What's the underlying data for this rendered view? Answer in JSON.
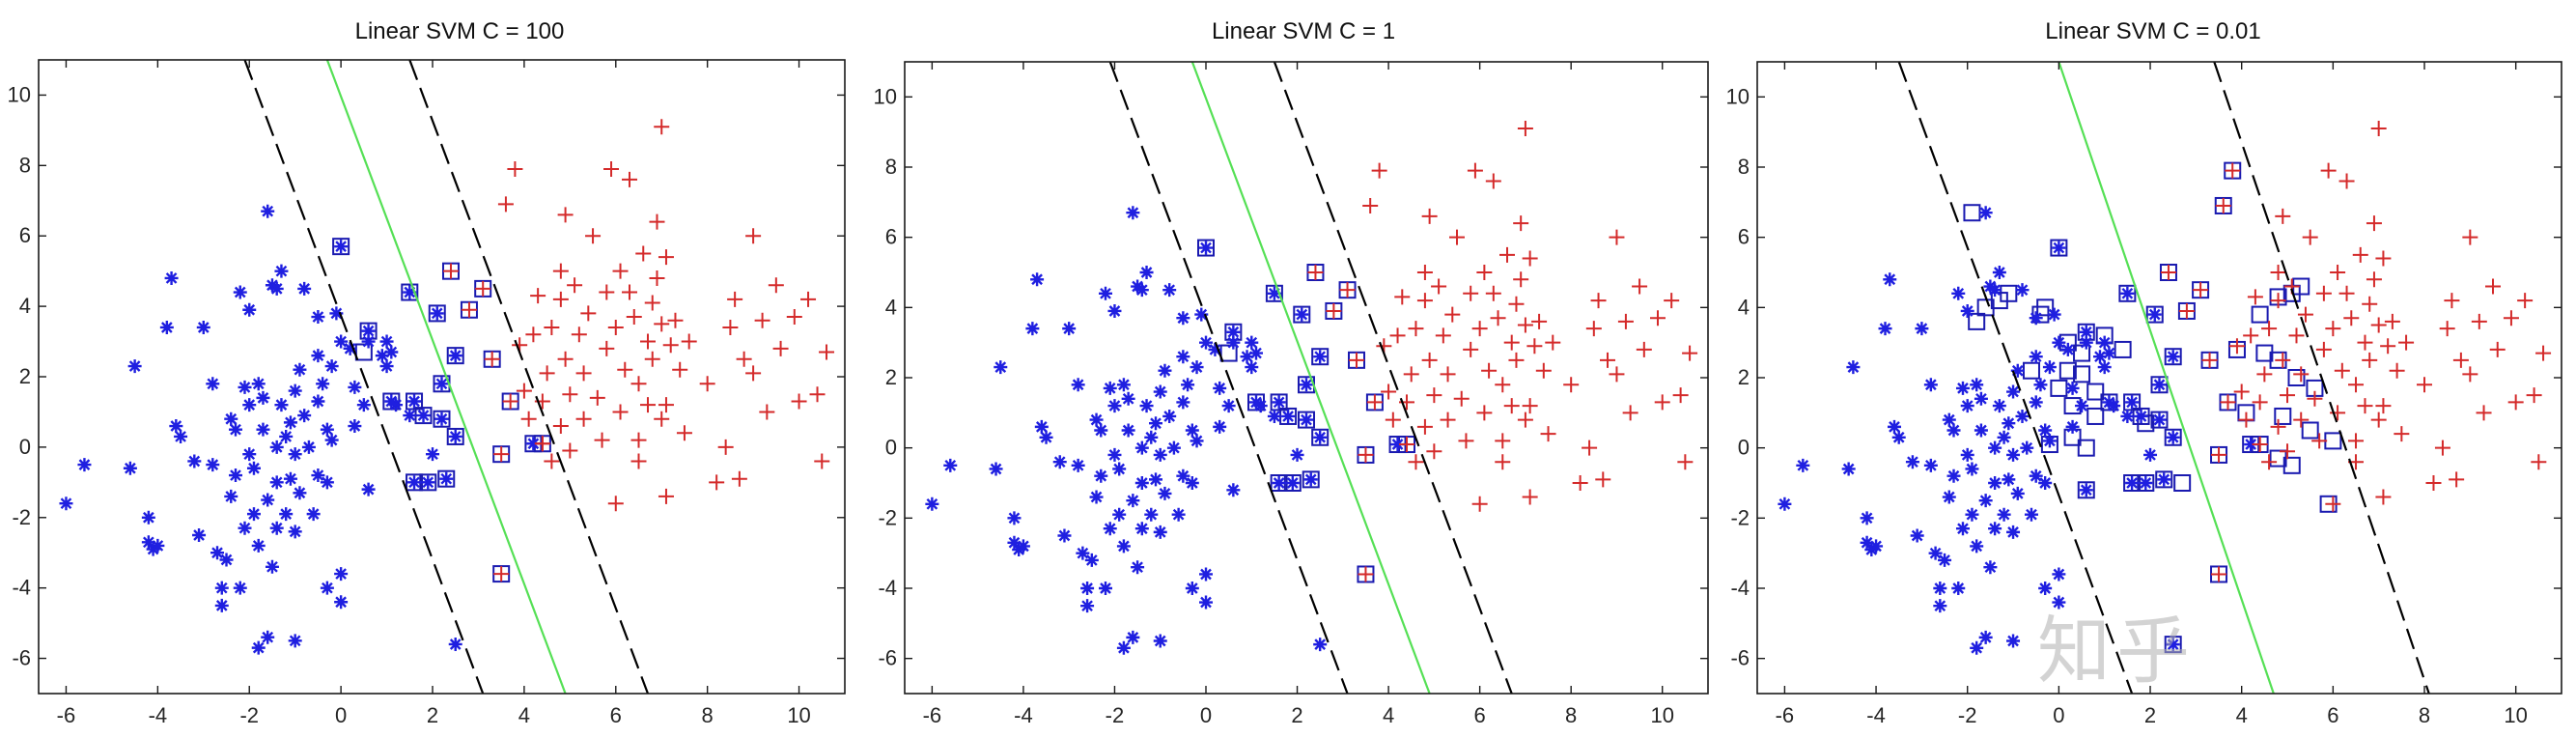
{
  "chart_data": [
    {
      "type": "scatter",
      "title": "Linear SVM  C = 100",
      "xlim": [
        -6.6,
        11.0
      ],
      "ylim": [
        -7.0,
        11.0
      ],
      "xticks": [
        -6,
        -4,
        -2,
        0,
        2,
        4,
        6,
        8,
        10
      ],
      "yticks": [
        -6,
        -4,
        -2,
        0,
        2,
        4,
        6,
        8,
        10
      ],
      "grid": false,
      "lines": [
        {
          "role": "decision boundary",
          "color": "#55e055",
          "style": "solid",
          "points": [
            [
              -0.3,
              11.0
            ],
            [
              4.9,
              -7.0
            ]
          ]
        },
        {
          "role": "margin",
          "color": "#000000",
          "style": "dashed",
          "points": [
            [
              -2.1,
              11.0
            ],
            [
              3.1,
              -7.0
            ]
          ]
        },
        {
          "role": "margin",
          "color": "#000000",
          "style": "dashed",
          "points": [
            [
              1.5,
              11.0
            ],
            [
              6.7,
              -7.0
            ]
          ]
        }
      ],
      "support_vectors": [
        [
          0.0,
          5.7
        ],
        [
          0.6,
          3.3
        ],
        [
          0.5,
          2.7
        ],
        [
          1.5,
          4.4
        ],
        [
          2.1,
          3.8
        ],
        [
          2.4,
          5.0
        ],
        [
          2.8,
          3.9
        ],
        [
          3.1,
          4.5
        ],
        [
          2.5,
          2.6
        ],
        [
          3.3,
          2.5
        ],
        [
          2.2,
          1.8
        ],
        [
          1.1,
          1.3
        ],
        [
          1.6,
          1.3
        ],
        [
          1.8,
          0.9
        ],
        [
          2.2,
          0.8
        ],
        [
          2.5,
          0.3
        ],
        [
          3.5,
          -0.2
        ],
        [
          1.6,
          -1.0
        ],
        [
          1.9,
          -1.0
        ],
        [
          2.3,
          -0.9
        ],
        [
          3.7,
          1.3
        ],
        [
          4.2,
          0.1
        ],
        [
          4.4,
          0.1
        ],
        [
          3.5,
          -3.6
        ]
      ]
    },
    {
      "type": "scatter",
      "title": "Linear SVM  C = 1",
      "xlim": [
        -6.6,
        11.0
      ],
      "ylim": [
        -7.0,
        11.0
      ],
      "xticks": [
        -6,
        -4,
        -2,
        0,
        2,
        4,
        6,
        8,
        10
      ],
      "yticks": [
        -6,
        -4,
        -2,
        0,
        2,
        4,
        6,
        8,
        10
      ],
      "grid": false,
      "lines": [
        {
          "role": "decision boundary",
          "color": "#55e055",
          "style": "solid",
          "points": [
            [
              -0.3,
              11.0
            ],
            [
              4.9,
              -7.0
            ]
          ]
        },
        {
          "role": "margin",
          "color": "#000000",
          "style": "dashed",
          "points": [
            [
              -2.1,
              11.0
            ],
            [
              3.1,
              -7.0
            ]
          ]
        },
        {
          "role": "margin",
          "color": "#000000",
          "style": "dashed",
          "points": [
            [
              1.5,
              11.0
            ],
            [
              6.7,
              -7.0
            ]
          ]
        }
      ],
      "support_vectors": [
        [
          0.0,
          5.7
        ],
        [
          0.6,
          3.3
        ],
        [
          0.5,
          2.7
        ],
        [
          1.5,
          4.4
        ],
        [
          2.1,
          3.8
        ],
        [
          2.4,
          5.0
        ],
        [
          2.8,
          3.9
        ],
        [
          3.1,
          4.5
        ],
        [
          2.5,
          2.6
        ],
        [
          3.3,
          2.5
        ],
        [
          2.2,
          1.8
        ],
        [
          1.1,
          1.3
        ],
        [
          1.6,
          1.3
        ],
        [
          1.8,
          0.9
        ],
        [
          2.2,
          0.8
        ],
        [
          2.5,
          0.3
        ],
        [
          3.5,
          -0.2
        ],
        [
          1.6,
          -1.0
        ],
        [
          1.9,
          -1.0
        ],
        [
          2.3,
          -0.9
        ],
        [
          3.7,
          1.3
        ],
        [
          4.2,
          0.1
        ],
        [
          4.4,
          0.1
        ],
        [
          3.5,
          -3.6
        ]
      ]
    },
    {
      "type": "scatter",
      "title": "Linear SVM  C = 0.01",
      "xlim": [
        -6.6,
        11.0
      ],
      "ylim": [
        -7.0,
        11.0
      ],
      "xticks": [
        -6,
        -4,
        -2,
        0,
        2,
        4,
        6,
        8,
        10
      ],
      "yticks": [
        -6,
        -4,
        -2,
        0,
        2,
        4,
        6,
        8,
        10
      ],
      "grid": false,
      "lines": [
        {
          "role": "decision boundary",
          "color": "#55e055",
          "style": "solid",
          "points": [
            [
              0.0,
              11.0
            ],
            [
              4.7,
              -7.0
            ]
          ]
        },
        {
          "role": "margin",
          "color": "#000000",
          "style": "dashed",
          "points": [
            [
              -3.5,
              11.0
            ],
            [
              1.6,
              -7.0
            ]
          ]
        },
        {
          "role": "margin",
          "color": "#000000",
          "style": "dashed",
          "points": [
            [
              3.4,
              11.0
            ],
            [
              8.1,
              -7.0
            ]
          ]
        }
      ],
      "support_vectors": [
        [
          -1.9,
          6.7
        ],
        [
          0.0,
          5.7
        ],
        [
          -1.1,
          4.4
        ],
        [
          -1.3,
          4.2
        ],
        [
          -1.6,
          4.0
        ],
        [
          -1.8,
          3.6
        ],
        [
          -0.4,
          3.8
        ],
        [
          -0.3,
          4.0
        ],
        [
          0.2,
          3.0
        ],
        [
          0.6,
          3.3
        ],
        [
          0.5,
          2.7
        ],
        [
          1.0,
          3.2
        ],
        [
          1.5,
          4.4
        ],
        [
          2.1,
          3.8
        ],
        [
          2.4,
          5.0
        ],
        [
          2.8,
          3.9
        ],
        [
          3.1,
          4.5
        ],
        [
          3.6,
          6.9
        ],
        [
          3.8,
          7.9
        ],
        [
          4.4,
          3.8
        ],
        [
          4.8,
          4.3
        ],
        [
          5.1,
          4.4
        ],
        [
          5.3,
          4.6
        ],
        [
          1.4,
          2.8
        ],
        [
          0.2,
          2.2
        ],
        [
          0.5,
          2.1
        ],
        [
          0.8,
          1.6
        ],
        [
          -0.6,
          2.2
        ],
        [
          0.0,
          1.7
        ],
        [
          0.3,
          1.2
        ],
        [
          0.8,
          0.9
        ],
        [
          1.1,
          1.3
        ],
        [
          1.6,
          1.3
        ],
        [
          1.8,
          0.9
        ],
        [
          2.2,
          1.8
        ],
        [
          2.5,
          2.6
        ],
        [
          3.3,
          2.5
        ],
        [
          3.9,
          2.8
        ],
        [
          4.5,
          2.7
        ],
        [
          4.8,
          2.5
        ],
        [
          5.2,
          2.0
        ],
        [
          5.6,
          1.7
        ],
        [
          3.7,
          1.3
        ],
        [
          4.1,
          1.0
        ],
        [
          4.9,
          0.9
        ],
        [
          5.5,
          0.5
        ],
        [
          6.0,
          0.2
        ],
        [
          -0.2,
          0.1
        ],
        [
          0.3,
          0.3
        ],
        [
          0.6,
          0.0
        ],
        [
          1.9,
          0.7
        ],
        [
          2.2,
          0.8
        ],
        [
          2.5,
          0.3
        ],
        [
          3.5,
          -0.2
        ],
        [
          4.2,
          0.1
        ],
        [
          4.4,
          0.1
        ],
        [
          4.8,
          -0.3
        ],
        [
          5.1,
          -0.5
        ],
        [
          1.6,
          -1.0
        ],
        [
          1.9,
          -1.0
        ],
        [
          2.3,
          -0.9
        ],
        [
          2.7,
          -1.0
        ],
        [
          0.6,
          -1.2
        ],
        [
          5.9,
          -1.6
        ],
        [
          3.5,
          -3.6
        ],
        [
          2.5,
          -5.6
        ]
      ]
    }
  ],
  "shared_series": {
    "class_a": {
      "marker": "asterisk",
      "color": "#1f1fe0",
      "points": [
        [
          -6.0,
          -1.6
        ],
        [
          -5.6,
          -0.5
        ],
        [
          -4.6,
          -0.6
        ],
        [
          -4.5,
          2.3
        ],
        [
          -4.2,
          -2.0
        ],
        [
          -4.2,
          -2.7
        ],
        [
          -4.1,
          -2.9
        ],
        [
          -3.8,
          3.4
        ],
        [
          -3.7,
          4.8
        ],
        [
          -3.6,
          0.6
        ],
        [
          -3.5,
          0.3
        ],
        [
          -3.2,
          -0.4
        ],
        [
          -3.1,
          -2.5
        ],
        [
          -3.0,
          3.4
        ],
        [
          -2.8,
          -0.5
        ],
        [
          -2.8,
          1.8
        ],
        [
          -2.7,
          -3.0
        ],
        [
          -2.6,
          -4.0
        ],
        [
          -2.6,
          -4.5
        ],
        [
          -2.5,
          -3.2
        ],
        [
          -2.4,
          0.8
        ],
        [
          -2.4,
          -1.4
        ],
        [
          -2.3,
          0.5
        ],
        [
          -2.3,
          -0.8
        ],
        [
          -2.2,
          -4.0
        ],
        [
          -2.2,
          4.4
        ],
        [
          -2.1,
          -2.3
        ],
        [
          -2.1,
          1.7
        ],
        [
          -2.0,
          3.9
        ],
        [
          -2.0,
          1.2
        ],
        [
          -2.0,
          -0.2
        ],
        [
          -1.9,
          -0.6
        ],
        [
          -1.9,
          -1.9
        ],
        [
          -1.8,
          1.8
        ],
        [
          -1.8,
          -2.8
        ],
        [
          -1.8,
          -5.7
        ],
        [
          -1.7,
          0.5
        ],
        [
          -1.7,
          1.4
        ],
        [
          -1.6,
          -1.5
        ],
        [
          -1.6,
          -5.4
        ],
        [
          -1.5,
          4.6
        ],
        [
          -1.5,
          -3.4
        ],
        [
          -1.4,
          4.5
        ],
        [
          -1.4,
          0.0
        ],
        [
          -1.4,
          -2.3
        ],
        [
          -1.4,
          -1.0
        ],
        [
          -1.3,
          5.0
        ],
        [
          -1.3,
          1.2
        ],
        [
          -1.2,
          0.3
        ],
        [
          -1.2,
          -1.9
        ],
        [
          -1.1,
          0.7
        ],
        [
          -1.1,
          -0.9
        ],
        [
          -1.0,
          1.6
        ],
        [
          -1.0,
          -0.2
        ],
        [
          -1.0,
          -2.4
        ],
        [
          -1.0,
          -5.5
        ],
        [
          -0.9,
          2.2
        ],
        [
          -0.9,
          -1.3
        ],
        [
          -0.8,
          4.5
        ],
        [
          -0.8,
          0.9
        ],
        [
          -0.7,
          0.0
        ],
        [
          -0.6,
          -1.9
        ],
        [
          -0.5,
          3.7
        ],
        [
          -0.5,
          1.3
        ],
        [
          -0.5,
          2.6
        ],
        [
          -0.5,
          -0.8
        ],
        [
          -0.4,
          1.8
        ],
        [
          -0.3,
          0.5
        ],
        [
          -0.3,
          -1.0
        ],
        [
          -0.3,
          -4.0
        ],
        [
          -0.2,
          0.2
        ],
        [
          -0.2,
          2.3
        ],
        [
          -0.1,
          3.8
        ],
        [
          0.0,
          3.0
        ],
        [
          0.0,
          -3.6
        ],
        [
          0.0,
          -4.4
        ],
        [
          0.2,
          2.8
        ],
        [
          0.3,
          1.7
        ],
        [
          0.3,
          0.6
        ],
        [
          0.5,
          1.2
        ],
        [
          0.6,
          -1.2
        ],
        [
          0.6,
          3.0
        ],
        [
          0.9,
          2.6
        ],
        [
          1.0,
          2.3
        ],
        [
          1.0,
          3.0
        ],
        [
          1.1,
          2.7
        ],
        [
          1.2,
          1.2
        ],
        [
          1.5,
          0.9
        ],
        [
          1.8,
          0.9
        ],
        [
          2.0,
          -0.2
        ],
        [
          2.5,
          -5.6
        ],
        [
          -4.0,
          -2.8
        ],
        [
          -1.6,
          6.7
        ],
        [
          0.0,
          5.7
        ],
        [
          0.6,
          3.3
        ],
        [
          1.5,
          4.4
        ],
        [
          2.1,
          3.8
        ],
        [
          2.5,
          2.6
        ],
        [
          2.2,
          1.8
        ],
        [
          1.1,
          1.3
        ],
        [
          1.6,
          1.3
        ],
        [
          2.2,
          0.8
        ],
        [
          2.5,
          0.3
        ],
        [
          1.6,
          -1.0
        ],
        [
          1.9,
          -1.0
        ],
        [
          2.3,
          -0.9
        ],
        [
          4.2,
          0.1
        ]
      ]
    },
    "class_b": {
      "marker": "plus",
      "color": "#d42a2a",
      "points": [
        [
          3.5,
          -3.6
        ],
        [
          3.5,
          -0.2
        ],
        [
          3.6,
          6.9
        ],
        [
          3.8,
          7.9
        ],
        [
          3.9,
          2.9
        ],
        [
          4.0,
          1.6
        ],
        [
          4.1,
          0.8
        ],
        [
          4.2,
          3.2
        ],
        [
          4.3,
          4.3
        ],
        [
          4.4,
          1.3
        ],
        [
          4.4,
          0.1
        ],
        [
          4.5,
          2.1
        ],
        [
          4.6,
          -0.4
        ],
        [
          4.6,
          3.4
        ],
        [
          4.8,
          4.2
        ],
        [
          4.8,
          0.6
        ],
        [
          4.8,
          5.0
        ],
        [
          4.9,
          2.5
        ],
        [
          4.9,
          6.6
        ],
        [
          5.0,
          -0.1
        ],
        [
          5.0,
          1.5
        ],
        [
          5.1,
          4.6
        ],
        [
          5.2,
          3.2
        ],
        [
          5.3,
          0.8
        ],
        [
          5.3,
          2.1
        ],
        [
          5.4,
          3.8
        ],
        [
          5.5,
          6.0
        ],
        [
          5.6,
          1.4
        ],
        [
          5.7,
          0.2
        ],
        [
          5.8,
          2.8
        ],
        [
          5.8,
          4.4
        ],
        [
          5.9,
          7.9
        ],
        [
          6.0,
          3.4
        ],
        [
          6.0,
          -1.6
        ],
        [
          6.1,
          1.0
        ],
        [
          6.1,
          5.0
        ],
        [
          6.2,
          2.2
        ],
        [
          6.3,
          7.6
        ],
        [
          6.3,
          4.4
        ],
        [
          6.4,
          3.7
        ],
        [
          6.5,
          1.8
        ],
        [
          6.5,
          -0.4
        ],
        [
          6.5,
          0.2
        ],
        [
          6.6,
          5.5
        ],
        [
          6.7,
          3.0
        ],
        [
          6.7,
          1.2
        ],
        [
          6.8,
          4.1
        ],
        [
          6.8,
          2.5
        ],
        [
          6.9,
          6.4
        ],
        [
          6.9,
          4.8
        ],
        [
          7.0,
          9.1
        ],
        [
          7.0,
          0.8
        ],
        [
          7.0,
          3.5
        ],
        [
          7.1,
          5.4
        ],
        [
          7.1,
          1.2
        ],
        [
          7.1,
          -1.4
        ],
        [
          7.2,
          2.9
        ],
        [
          7.3,
          3.6
        ],
        [
          7.4,
          2.2
        ],
        [
          7.5,
          0.4
        ],
        [
          7.6,
          3.0
        ],
        [
          8.0,
          1.8
        ],
        [
          8.2,
          -1.0
        ],
        [
          8.4,
          0.0
        ],
        [
          8.5,
          3.4
        ],
        [
          8.6,
          4.2
        ],
        [
          8.7,
          -0.9
        ],
        [
          8.8,
          2.5
        ],
        [
          9.0,
          2.1
        ],
        [
          9.0,
          6.0
        ],
        [
          9.2,
          3.6
        ],
        [
          9.3,
          1.0
        ],
        [
          9.5,
          4.6
        ],
        [
          9.6,
          2.8
        ],
        [
          9.9,
          3.7
        ],
        [
          10.0,
          1.3
        ],
        [
          10.2,
          4.2
        ],
        [
          10.4,
          1.5
        ],
        [
          10.5,
          -0.4
        ],
        [
          10.6,
          2.7
        ],
        [
          2.4,
          5.0
        ],
        [
          2.8,
          3.9
        ],
        [
          3.1,
          4.5
        ],
        [
          3.3,
          2.5
        ],
        [
          3.7,
          1.3
        ],
        [
          4.4,
          0.1
        ]
      ]
    }
  },
  "watermark": "知乎"
}
